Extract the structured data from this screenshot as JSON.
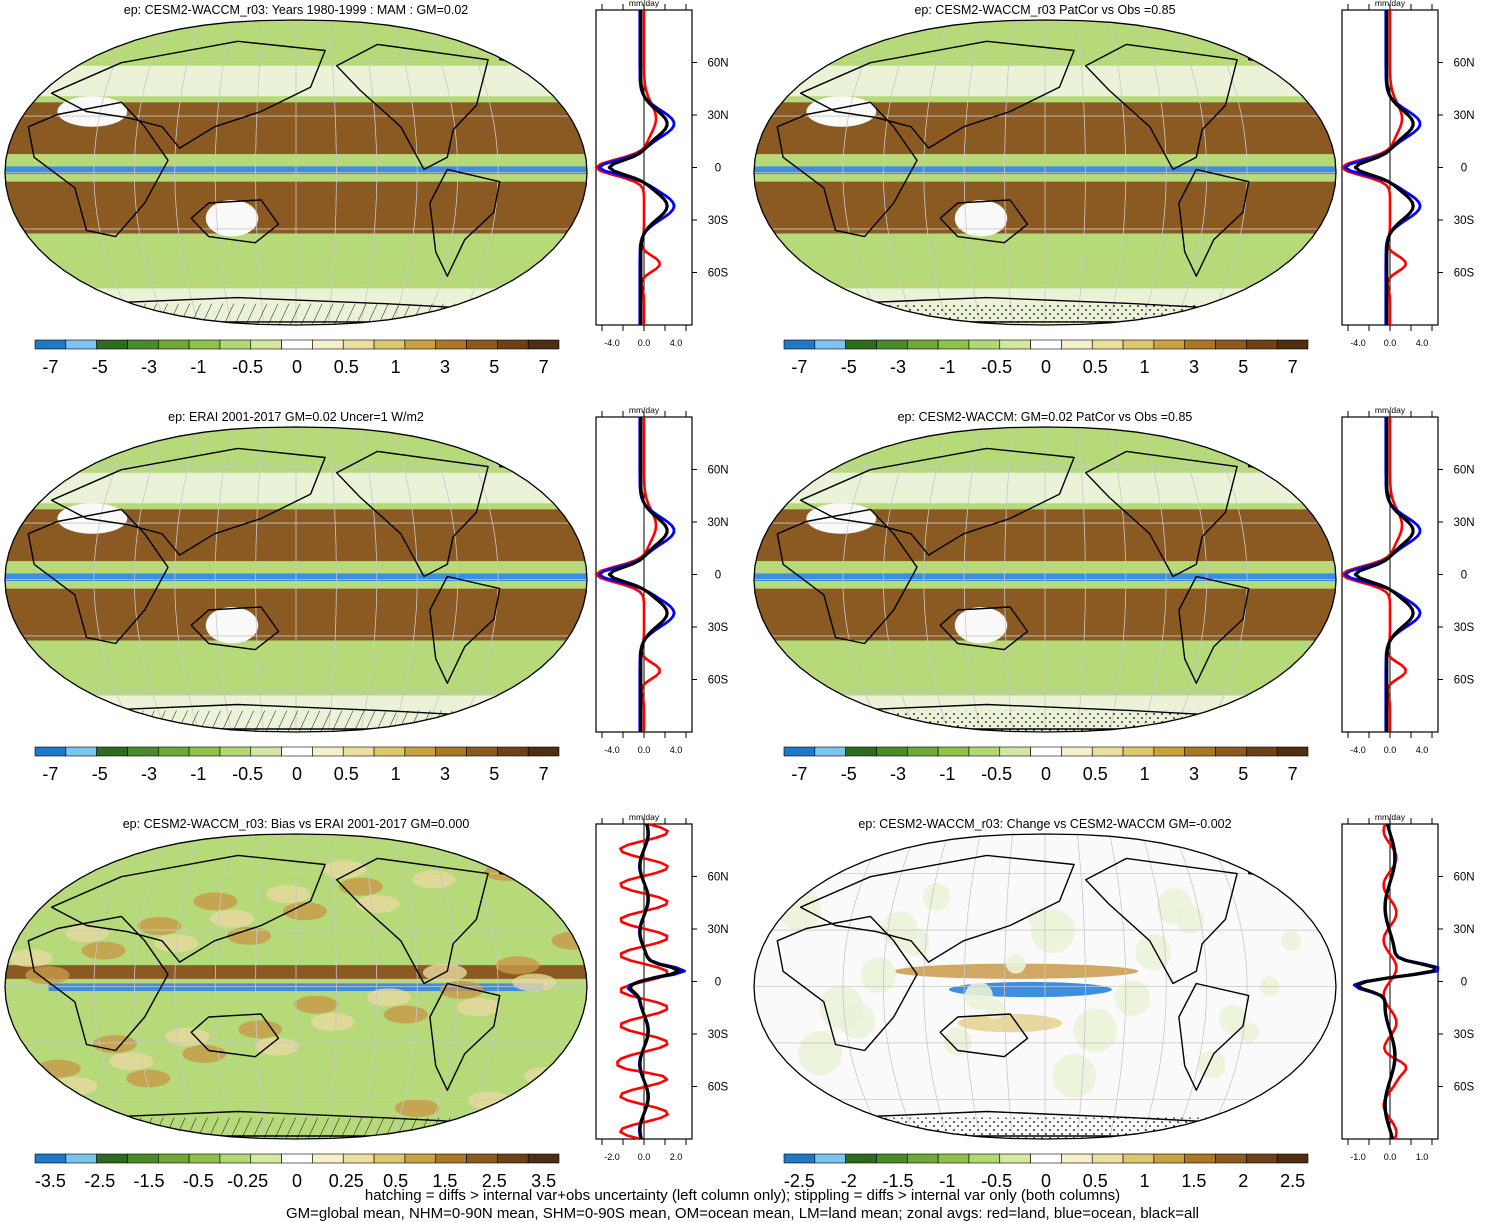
{
  "colorbar_colors": [
    "#1f78c8",
    "#7cc3ee",
    "#2e6b1f",
    "#4b8a2a",
    "#6ea838",
    "#8fc24a",
    "#b2d873",
    "#d3e8a3",
    "#ffffff",
    "#f4f0cc",
    "#eadfa0",
    "#dcc66e",
    "#c8a240",
    "#a97826",
    "#8c5a1f",
    "#6e4218",
    "#4e2d10"
  ],
  "zonal_colors": {
    "land": "#ff0000",
    "ocean": "#0000ff",
    "all": "#000000"
  },
  "map_colors": {
    "desert": "#8a5a22",
    "dry": "#c89848",
    "light_dry": "#e8d8a0",
    "wet": "#b6d97a",
    "wetter": "#8fc24a",
    "very_wet": "#3d8ee0",
    "neutral": "#fafafa",
    "pale_green": "#eaf3d8"
  },
  "panels": [
    {
      "id": "top-left",
      "title": "ep: CESM2-WACCM_r03: Years 1980-1999 : MAM : GM=0.02",
      "mode": "mean",
      "colorbar_labels": [
        "-7",
        "-5",
        "-3",
        "-1",
        "-0.5",
        "0",
        "0.5",
        "1",
        "3",
        "5",
        "7"
      ],
      "zonal": {
        "unit": "mm/day",
        "x_ticks": [
          "-4.0",
          "0.0",
          "4.0"
        ],
        "x_range": [
          -6,
          6
        ],
        "lat_labels": [
          "60N",
          "30N",
          "0",
          "30S",
          "60S"
        ]
      },
      "hatch": "hatch"
    },
    {
      "id": "top-right",
      "title": "ep: CESM2-WACCM_r03 PatCor vs Obs =0.85",
      "mode": "mean",
      "colorbar_labels": [
        "-7",
        "-5",
        "-3",
        "-1",
        "-0.5",
        "0",
        "0.5",
        "1",
        "3",
        "5",
        "7"
      ],
      "zonal": {
        "unit": "mm/day",
        "x_ticks": [
          "-4.0",
          "0.0",
          "4.0"
        ],
        "x_range": [
          -6,
          6
        ],
        "lat_labels": [
          "60N",
          "30N",
          "0",
          "30S",
          "60S"
        ]
      },
      "hatch": "stipple"
    },
    {
      "id": "middle-left",
      "title": "ep: ERAI 2001-2017 GM=0.02 Uncer=1 W/m2",
      "mode": "mean",
      "colorbar_labels": [
        "-7",
        "-5",
        "-3",
        "-1",
        "-0.5",
        "0",
        "0.5",
        "1",
        "3",
        "5",
        "7"
      ],
      "zonal": {
        "unit": "mm/day",
        "x_ticks": [
          "-4.0",
          "0.0",
          "4.0"
        ],
        "x_range": [
          -6,
          6
        ],
        "lat_labels": [
          "60N",
          "30N",
          "0",
          "30S",
          "60S"
        ]
      },
      "hatch": "hatch"
    },
    {
      "id": "middle-right",
      "title": "ep: CESM2-WACCM: GM=0.02 PatCor vs Obs =0.85",
      "mode": "mean",
      "colorbar_labels": [
        "-7",
        "-5",
        "-3",
        "-1",
        "-0.5",
        "0",
        "0.5",
        "1",
        "3",
        "5",
        "7"
      ],
      "zonal": {
        "unit": "mm/day",
        "x_ticks": [
          "-4.0",
          "0.0",
          "4.0"
        ],
        "x_range": [
          -6,
          6
        ],
        "lat_labels": [
          "60N",
          "30N",
          "0",
          "30S",
          "60S"
        ]
      },
      "hatch": "stipple"
    },
    {
      "id": "bottom-left",
      "title": "ep: CESM2-WACCM_r03: Bias vs ERAI 2001-2017 GM=0.000",
      "mode": "bias",
      "colorbar_labels": [
        "-3.5",
        "-2.5",
        "-1.5",
        "-0.5",
        "-0.25",
        "0",
        "0.25",
        "0.5",
        "1.5",
        "2.5",
        "3.5"
      ],
      "zonal": {
        "unit": "mm/day",
        "x_ticks": [
          "-2.0",
          "0.0",
          "2.0"
        ],
        "x_range": [
          -3,
          3
        ],
        "lat_labels": [
          "60N",
          "30N",
          "0",
          "30S",
          "60S"
        ]
      },
      "hatch": "hatch"
    },
    {
      "id": "bottom-right",
      "title": "ep: CESM2-WACCM_r03: Change vs CESM2-WACCM GM=-0.002",
      "mode": "change",
      "colorbar_labels": [
        "-2.5",
        "-2",
        "-1.5",
        "-1",
        "-0.5",
        "0",
        "0.5",
        "1",
        "1.5",
        "2",
        "2.5"
      ],
      "zonal": {
        "unit": "mm/day",
        "x_ticks": [
          "-1.0",
          "0.0",
          "1.0"
        ],
        "x_range": [
          -1.5,
          1.5
        ],
        "lat_labels": [
          "60N",
          "30N",
          "0",
          "30S",
          "60S"
        ]
      },
      "hatch": "stipple"
    }
  ],
  "footer": {
    "line1": "hatching = diffs > internal var+obs uncertainty (left column only); stippling = diffs > internal var only (both columns)",
    "line2": "GM=global mean, NHM=0-90N mean, SHM=0-90S mean, OM=ocean mean, LM=land mean; zonal avgs: red=land, blue=ocean, black=all"
  }
}
